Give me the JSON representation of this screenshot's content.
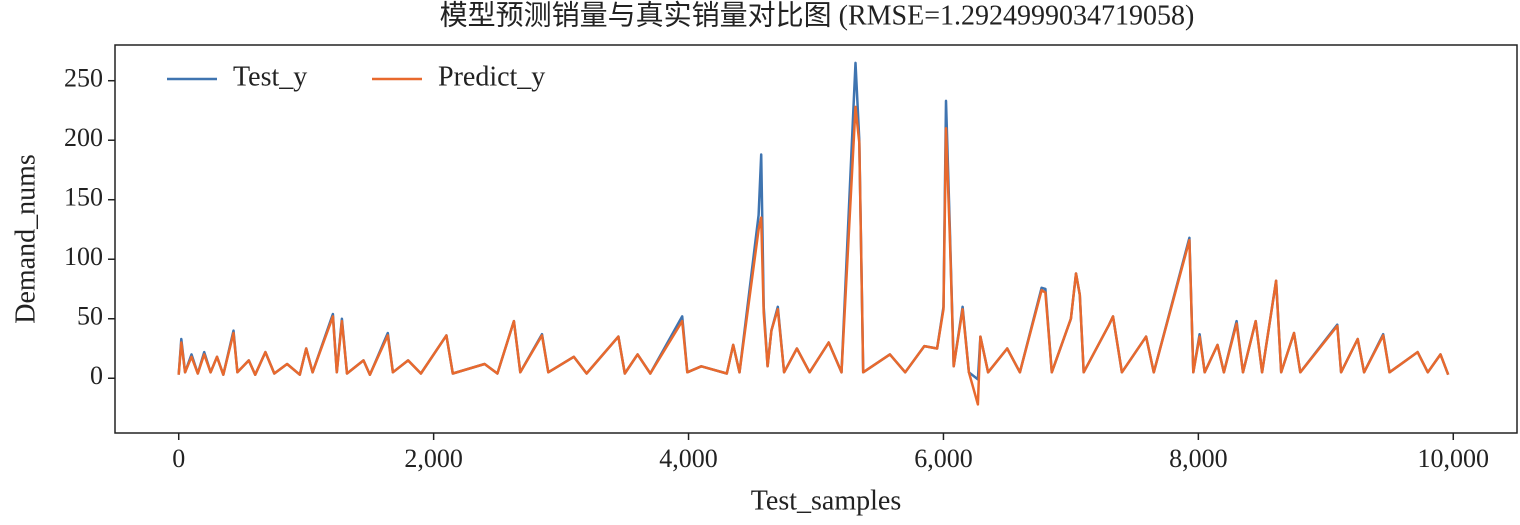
{
  "chart_data": {
    "type": "line",
    "title": "模型预测销量与真实销量对比图 (RMSE=1.2924999034719058)",
    "xlabel": "Test_samples",
    "ylabel": "Demand_nums",
    "x": [
      0,
      20,
      50,
      100,
      150,
      200,
      250,
      300,
      350,
      430,
      460,
      550,
      600,
      680,
      750,
      850,
      950,
      1000,
      1050,
      1210,
      1240,
      1280,
      1320,
      1450,
      1500,
      1640,
      1680,
      1800,
      1900,
      2100,
      2150,
      2400,
      2500,
      2630,
      2680,
      2850,
      2900,
      3100,
      3200,
      3450,
      3500,
      3600,
      3700,
      3950,
      3990,
      4100,
      4300,
      4350,
      4400,
      4550,
      4570,
      4590,
      4620,
      4650,
      4700,
      4750,
      4850,
      4950,
      5100,
      5200,
      5310,
      5340,
      5370,
      5580,
      5700,
      5850,
      5950,
      6000,
      6020,
      6050,
      6080,
      6150,
      6200,
      6270,
      6290,
      6350,
      6500,
      6600,
      6770,
      6800,
      6850,
      7000,
      7040,
      7070,
      7100,
      7300,
      7330,
      7400,
      7590,
      7650,
      7930,
      7960,
      8010,
      8050,
      8150,
      8200,
      8300,
      8350,
      8450,
      8500,
      8610,
      8650,
      8750,
      8800,
      9090,
      9120,
      9250,
      9300,
      9450,
      9500,
      9720,
      9800,
      9900,
      9960
    ],
    "series": [
      {
        "name": "Test_y",
        "color": "#3f74b0",
        "values": [
          3,
          33,
          5,
          20,
          4,
          22,
          5,
          18,
          3,
          40,
          5,
          15,
          3,
          22,
          4,
          12,
          3,
          25,
          5,
          54,
          5,
          50,
          4,
          15,
          3,
          38,
          5,
          15,
          4,
          36,
          4,
          12,
          4,
          48,
          5,
          37,
          5,
          18,
          4,
          35,
          4,
          20,
          4,
          52,
          5,
          10,
          4,
          28,
          5,
          137,
          188,
          60,
          10,
          40,
          60,
          5,
          25,
          5,
          30,
          5,
          265,
          200,
          5,
          20,
          5,
          27,
          25,
          60,
          233,
          127,
          10,
          60,
          5,
          -1,
          35,
          5,
          25,
          5,
          76,
          75,
          5,
          50,
          88,
          70,
          5,
          45,
          52,
          5,
          35,
          5,
          118,
          5,
          37,
          5,
          28,
          5,
          48,
          5,
          48,
          5,
          82,
          5,
          38,
          5,
          45,
          5,
          33,
          5,
          37,
          5,
          22,
          5,
          20,
          3
        ]
      },
      {
        "name": "Predict_y",
        "color": "#e8692d",
        "values": [
          3,
          30,
          5,
          18,
          4,
          20,
          5,
          18,
          3,
          38,
          5,
          15,
          3,
          22,
          4,
          12,
          3,
          25,
          5,
          52,
          5,
          48,
          4,
          15,
          3,
          36,
          5,
          15,
          4,
          36,
          4,
          12,
          4,
          48,
          5,
          36,
          5,
          18,
          4,
          35,
          4,
          20,
          4,
          48,
          5,
          10,
          4,
          28,
          5,
          125,
          135,
          55,
          10,
          40,
          58,
          5,
          25,
          5,
          30,
          5,
          228,
          198,
          5,
          20,
          5,
          27,
          25,
          58,
          210,
          120,
          10,
          58,
          5,
          -22,
          35,
          5,
          25,
          5,
          74,
          72,
          5,
          50,
          88,
          70,
          5,
          45,
          52,
          5,
          35,
          5,
          116,
          5,
          35,
          5,
          28,
          5,
          46,
          5,
          48,
          5,
          82,
          5,
          38,
          5,
          44,
          5,
          33,
          5,
          36,
          5,
          22,
          5,
          20,
          3
        ]
      }
    ],
    "xlim": [
      -500,
      10500
    ],
    "ylim": [
      -46,
      280
    ],
    "xticks": [
      0,
      {
        "value": 2000,
        "label": "2,000"
      },
      {
        "value": 4000,
        "label": "4,000"
      },
      {
        "value": 6000,
        "label": "6,000"
      },
      {
        "value": 8000,
        "label": "8,000"
      },
      {
        "value": 10000,
        "label": "10,000"
      }
    ],
    "yticks": [
      0,
      50,
      100,
      150,
      200,
      250
    ],
    "grid": false,
    "legend": "upper left"
  }
}
